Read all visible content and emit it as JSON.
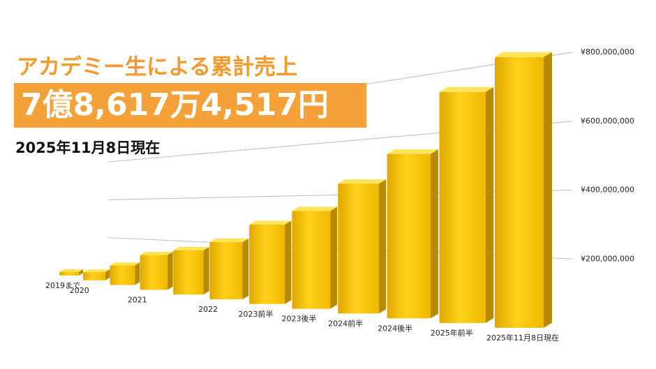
{
  "chart_data": {
    "type": "bar3d",
    "title": "アカデミー生による累計売上",
    "total": "7億8,617万4,517円",
    "as_of": "2025年11月8日現在",
    "categories": [
      "2019まで",
      "2020",
      null,
      "2021",
      null,
      "2022",
      "2023前半",
      "2023後半",
      "2024前半",
      "2024後半",
      "2025年前半",
      "2025年11月8日現在"
    ],
    "values": [
      20000000,
      40000000,
      90000000,
      150000000,
      180000000,
      220000000,
      290000000,
      340000000,
      430000000,
      520000000,
      700000000,
      786174517
    ],
    "color": "#f2c200",
    "ylim": [
      0,
      800000000
    ],
    "yticks": [
      {
        "value": 200000000,
        "label": "¥200,000,000"
      },
      {
        "value": 400000000,
        "label": "¥400,000,000"
      },
      {
        "value": 600000000,
        "label": "¥600,000,000"
      },
      {
        "value": 800000000,
        "label": "¥800,000,000"
      }
    ],
    "grid": true
  }
}
